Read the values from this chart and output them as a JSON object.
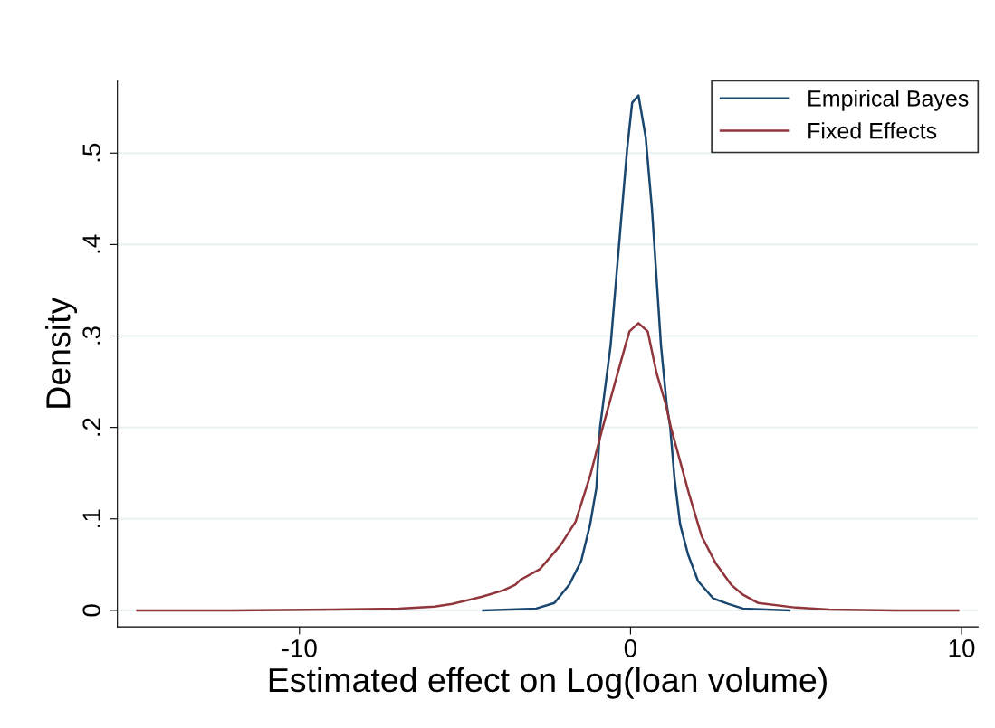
{
  "chart_data": {
    "type": "line",
    "xlabel": "Estimated effect on Log(loan volume)",
    "ylabel": "Density",
    "xlim": [
      -15.5,
      10.5
    ],
    "xticks": [
      -10,
      0,
      10
    ],
    "ylim": [
      -0.018,
      0.579
    ],
    "yticks": [
      {
        "value": 0,
        "label": "0"
      },
      {
        "value": 0.1,
        "label": ".1"
      },
      {
        "value": 0.2,
        "label": ".2"
      },
      {
        "value": 0.3,
        "label": ".3"
      },
      {
        "value": 0.4,
        "label": ".4"
      },
      {
        "value": 0.5,
        "label": ".5"
      }
    ],
    "grid": "y",
    "legend": "top right",
    "line_style": "solid",
    "series": [
      {
        "name": "Empirical Bayes",
        "color": "#1a476f",
        "x": [
          -4.45,
          -2.85,
          -2.3,
          -1.85,
          -1.49,
          -1.22,
          -1.03,
          -0.92,
          -0.6,
          -0.3,
          -0.1,
          0.05,
          0.24,
          0.46,
          0.65,
          0.92,
          1.09,
          1.2,
          1.33,
          1.5,
          1.74,
          2.04,
          2.5,
          2.96,
          3.4,
          4.8
        ],
        "values": [
          0,
          0.002,
          0.008,
          0.028,
          0.054,
          0.094,
          0.134,
          0.2,
          0.29,
          0.42,
          0.505,
          0.555,
          0.563,
          0.517,
          0.438,
          0.29,
          0.226,
          0.2,
          0.144,
          0.094,
          0.061,
          0.032,
          0.013,
          0.007,
          0.002,
          0
        ]
      },
      {
        "name": "Fixed Effects",
        "color": "#90353b",
        "x": [
          -14.9,
          -12,
          -9,
          -7,
          -5.92,
          -5.38,
          -4.48,
          -3.83,
          -3.48,
          -3.34,
          -2.74,
          -2.12,
          -1.66,
          -1.22,
          -0.84,
          -0.49,
          -0.16,
          -0.03,
          0.24,
          0.52,
          0.79,
          1.06,
          1.22,
          1.5,
          1.77,
          2.15,
          2.58,
          3.04,
          3.4,
          3.86,
          5,
          6,
          8,
          9.9
        ],
        "values": [
          0,
          0,
          0.001,
          0.002,
          0.004,
          0.007,
          0.015,
          0.022,
          0.028,
          0.033,
          0.045,
          0.071,
          0.097,
          0.147,
          0.2,
          0.246,
          0.289,
          0.305,
          0.314,
          0.305,
          0.259,
          0.226,
          0.2,
          0.163,
          0.127,
          0.081,
          0.051,
          0.028,
          0.017,
          0.008,
          0.003,
          0.001,
          0,
          0
        ]
      }
    ]
  }
}
